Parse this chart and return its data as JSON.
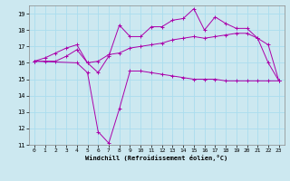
{
  "xlabel": "Windchill (Refroidissement éolien,°C)",
  "bg_color": "#cce8f0",
  "line_color": "#aa00aa",
  "grid_color": "#aaddee",
  "xlim": [
    -0.5,
    23.5
  ],
  "ylim": [
    11,
    19.5
  ],
  "yticks": [
    11,
    12,
    13,
    14,
    15,
    16,
    17,
    18,
    19
  ],
  "xticks": [
    0,
    1,
    2,
    3,
    4,
    5,
    6,
    7,
    8,
    9,
    10,
    11,
    12,
    13,
    14,
    15,
    16,
    17,
    18,
    19,
    20,
    21,
    22,
    23
  ],
  "series": [
    {
      "x": [
        0,
        1,
        2,
        3,
        4,
        5,
        6,
        7,
        8,
        9,
        10,
        11,
        12,
        13,
        14,
        15,
        16,
        17,
        18,
        19,
        20,
        21,
        22,
        23
      ],
      "y": [
        16.1,
        16.1,
        16.1,
        16.4,
        16.8,
        16.0,
        16.1,
        16.5,
        16.6,
        16.9,
        17.0,
        17.1,
        17.2,
        17.4,
        17.5,
        17.6,
        17.5,
        17.6,
        17.7,
        17.8,
        17.8,
        17.5,
        17.1,
        14.9
      ]
    },
    {
      "x": [
        0,
        1,
        2,
        3,
        4,
        5,
        6,
        7,
        8,
        9,
        10,
        11,
        12,
        13,
        14,
        15,
        16,
        17,
        18,
        19,
        20,
        21,
        22,
        23
      ],
      "y": [
        16.1,
        16.3,
        16.6,
        16.9,
        17.1,
        16.0,
        15.4,
        16.4,
        18.3,
        17.6,
        17.6,
        18.2,
        18.2,
        18.6,
        18.7,
        19.3,
        18.0,
        18.8,
        18.4,
        18.1,
        18.1,
        17.5,
        16.0,
        14.9
      ]
    },
    {
      "x": [
        0,
        4,
        5,
        6,
        7,
        8,
        9,
        10,
        11,
        12,
        13,
        14,
        15,
        16,
        17,
        18,
        19,
        20,
        21,
        22,
        23
      ],
      "y": [
        16.1,
        16.0,
        15.4,
        11.8,
        11.1,
        13.2,
        15.5,
        15.5,
        15.4,
        15.3,
        15.2,
        15.1,
        15.0,
        15.0,
        15.0,
        14.9,
        14.9,
        14.9,
        14.9,
        14.9,
        14.9
      ]
    }
  ]
}
